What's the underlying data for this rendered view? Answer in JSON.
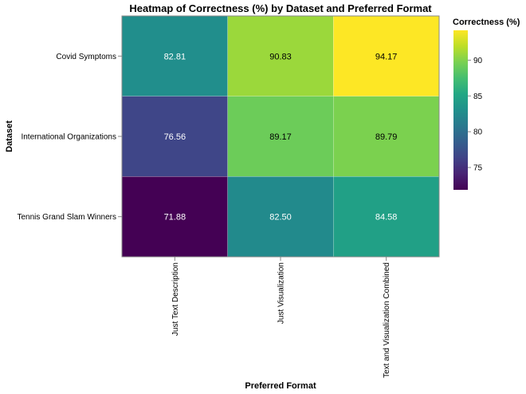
{
  "chart_data": {
    "type": "heatmap",
    "title": "Heatmap of Correctness (%) by Dataset and Preferred Format",
    "xlabel": "Preferred Format",
    "ylabel": "Dataset",
    "x_categories": [
      "Just Text Description",
      "Just Visualization",
      "Text and Visualization Combined"
    ],
    "y_categories": [
      "Covid Symptoms",
      "International Organizations",
      "Tennis Grand Slam Winners"
    ],
    "values": [
      [
        82.81,
        90.83,
        94.17
      ],
      [
        76.56,
        89.17,
        89.79
      ],
      [
        71.88,
        82.5,
        84.58
      ]
    ],
    "value_labels": [
      [
        "82.81",
        "90.83",
        "94.17"
      ],
      [
        "76.56",
        "89.17",
        "89.79"
      ],
      [
        "71.88",
        "82.50",
        "84.58"
      ]
    ],
    "color_scale": "viridis",
    "color_domain": [
      71.88,
      94.17
    ],
    "legend": {
      "title": "Correctness (%)",
      "ticks": [
        75,
        80,
        85,
        90
      ],
      "tick_labels": [
        "75",
        "80",
        "85",
        "90"
      ],
      "placement": "right"
    }
  }
}
